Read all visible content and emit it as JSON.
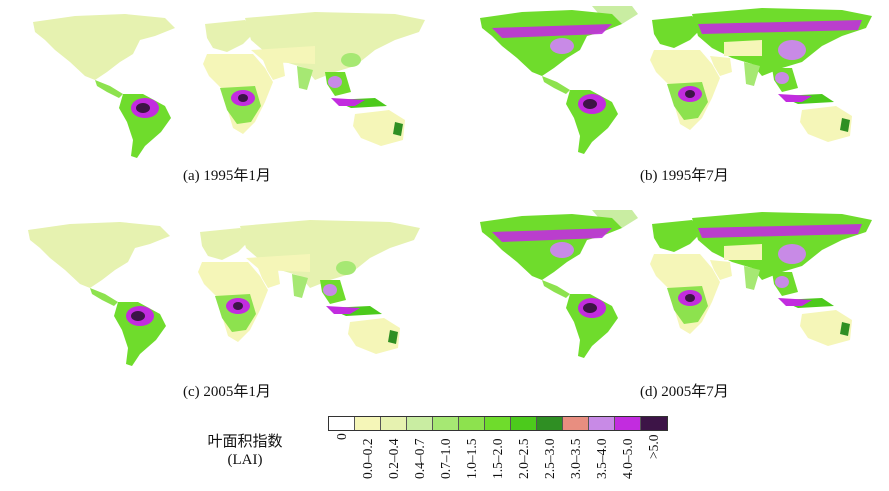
{
  "panels": [
    {
      "caption": "(a) 1995年1月",
      "season": "january"
    },
    {
      "caption": "(b) 1995年7月",
      "season": "july"
    },
    {
      "caption": "(c) 2005年1月",
      "season": "january"
    },
    {
      "caption": "(d) 2005年7月",
      "season": "july"
    }
  ],
  "legend": {
    "title_line1": "叶面积指数",
    "title_line2": "(LAI)",
    "classes": [
      {
        "label": "0",
        "color": "#ffffff"
      },
      {
        "label": "0.0–0.2",
        "color": "#f5f6b8"
      },
      {
        "label": "0.2–0.4",
        "color": "#e6f2b0"
      },
      {
        "label": "0.4–0.7",
        "color": "#c9eda2"
      },
      {
        "label": "0.7–1.0",
        "color": "#a6e873"
      },
      {
        "label": "1.0–1.5",
        "color": "#8de24e"
      },
      {
        "label": "1.5–2.0",
        "color": "#6fdc2c"
      },
      {
        "label": "2.0–2.5",
        "color": "#4cca1c"
      },
      {
        "label": "2.5–3.0",
        "color": "#2f8f23"
      },
      {
        "label": "3.0–3.5",
        "color": "#e88e80"
      },
      {
        "label": "3.5–4.0",
        "color": "#c88ae6"
      },
      {
        "label": "4.0–5.0",
        "color": "#c22cdf"
      },
      {
        "label": ">5.0",
        "color": "#3d1447"
      }
    ]
  }
}
